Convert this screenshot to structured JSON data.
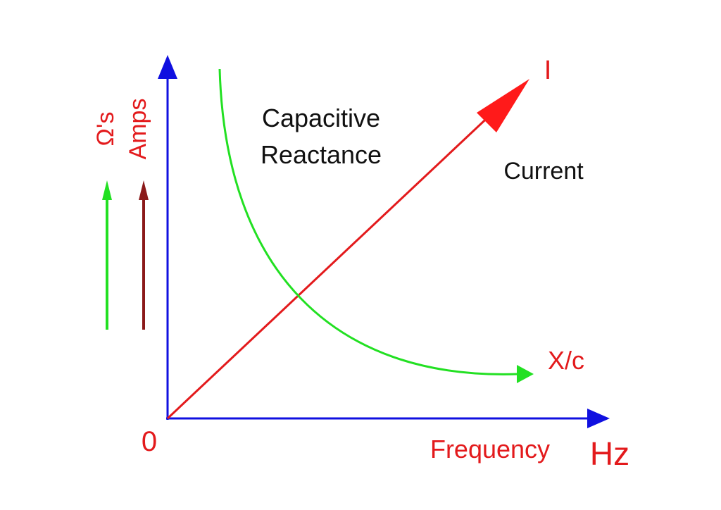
{
  "labels": {
    "origin": "0",
    "x_axis_name": "Frequency",
    "x_axis_unit": "Hz",
    "y_axis_ohms": "Ω's",
    "y_axis_amps": "Amps",
    "capacitive_line1": "Capacitive",
    "capacitive_line2": "Reactance",
    "current_text": "Current",
    "current_symbol": "I",
    "reactance_symbol": "X/c"
  },
  "colors": {
    "axes": "#1010e0",
    "current_line": "#e31a1c",
    "reactance_curve": "#22e022",
    "amps_arrow": "#8b1a1a",
    "ohms_arrow": "#22e022",
    "label_red": "#e31a1c",
    "label_black": "#111111"
  },
  "icons": {
    "axis_heads": "arrow-head",
    "indicator_arrows": "up-arrow"
  }
}
